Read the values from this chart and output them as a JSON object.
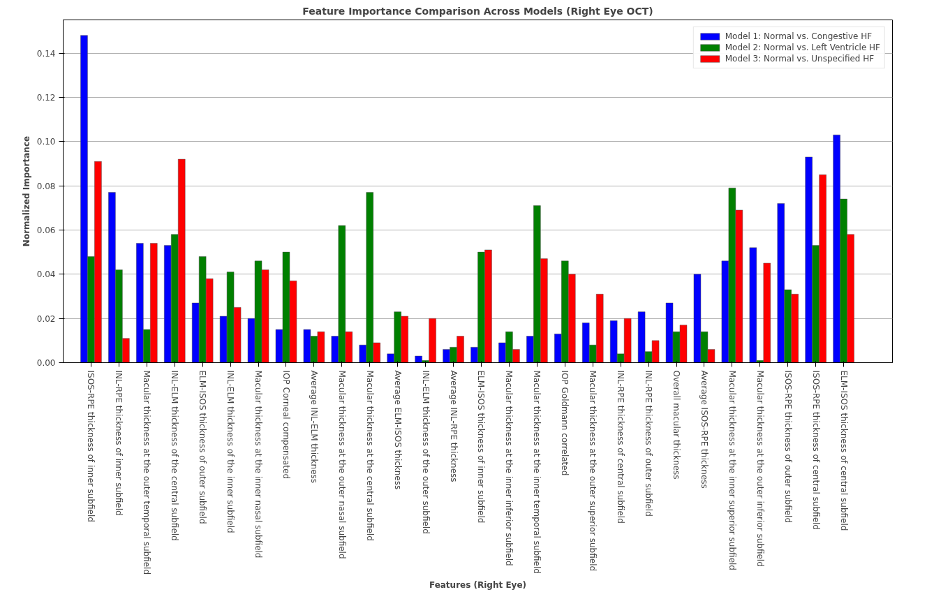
{
  "chart_data": {
    "type": "bar",
    "title": "Feature Importance Comparison Across Models (Right Eye OCT)",
    "xlabel": "Features (Right Eye)",
    "ylabel": "Normalized Importance",
    "categories": [
      "ISOS-RPE thickness of inner subfield",
      "INL-RPE thickness of inner subfield",
      "Macular thickness at the outer temporal subfield",
      "INL-ELM thickness of the central subfield",
      "ELM-ISOS thickness of outer subfield",
      "INL-ELM thickness of the inner subfield",
      "Macular thickness at the inner nasal subfield",
      "IOP Corneal compensated",
      "Average INL-ELM thickness",
      "Macular thickness at the outer nasal subfield",
      "Macular thickness at the central subfield",
      "Average ELM-ISOS thickness",
      "INL-ELM thickness of the outer subfield",
      "Average INL-RPE thickness",
      "ELM-ISOS thickness of inner subfield",
      "Macular thickness at the inner inferior subfield",
      "Macular thickness at the inner temporal subfield",
      "IOP Goldmann correlated",
      "Macular thickness at the outer superior subfield",
      "INL-RPE thickness of central subfield",
      "INL-RPE thickness of outer subfield",
      "Overall macular thickness",
      "Average ISOS-RPE thickness",
      "Macular thickness at the inner superior subfield",
      "Macular thickness at the outer inferior subfield",
      "ISOS-RPE thickness of outer subfield",
      "ISOS-RPE thickness of central subfield",
      "ELM-ISOS thickness of central subfield"
    ],
    "series": [
      {
        "name": "Model 1: Normal vs. Congestive HF",
        "color": "#0000ff",
        "values": [
          0.148,
          0.077,
          0.054,
          0.053,
          0.027,
          0.021,
          0.02,
          0.015,
          0.015,
          0.012,
          0.008,
          0.004,
          0.003,
          0.006,
          0.007,
          0.009,
          0.012,
          0.013,
          0.018,
          0.019,
          0.023,
          0.027,
          0.04,
          0.046,
          0.052,
          0.072,
          0.093,
          0.103
        ]
      },
      {
        "name": "Model 2: Normal vs. Left Ventricle HF",
        "color": "#008000",
        "values": [
          0.048,
          0.042,
          0.015,
          0.058,
          0.048,
          0.041,
          0.046,
          0.05,
          0.012,
          0.062,
          0.077,
          0.023,
          0.001,
          0.007,
          0.05,
          0.014,
          0.071,
          0.046,
          0.008,
          0.004,
          0.005,
          0.014,
          0.014,
          0.079,
          0.001,
          0.033,
          0.053,
          0.074
        ]
      },
      {
        "name": "Model 3: Normal vs. Unspecified HF",
        "color": "#ff0000",
        "values": [
          0.091,
          0.011,
          0.054,
          0.092,
          0.038,
          0.025,
          0.042,
          0.037,
          0.014,
          0.014,
          0.009,
          0.021,
          0.02,
          0.012,
          0.051,
          0.006,
          0.047,
          0.04,
          0.031,
          0.02,
          0.01,
          0.017,
          0.006,
          0.069,
          0.045,
          0.031,
          0.085,
          0.058
        ]
      }
    ],
    "ylim": [
      0,
      0.155
    ],
    "yticks": [
      {
        "value": 0,
        "label": "0.00"
      },
      {
        "value": 0.02,
        "label": "0.02"
      },
      {
        "value": 0.04,
        "label": "0.04"
      },
      {
        "value": 0.06,
        "label": "0.06"
      },
      {
        "value": 0.08,
        "label": "0.08"
      },
      {
        "value": 0.1,
        "label": "0.10"
      },
      {
        "value": 0.12,
        "label": "0.12"
      },
      {
        "value": 0.14,
        "label": "0.14"
      }
    ],
    "grid": "y",
    "legend": "top right"
  }
}
